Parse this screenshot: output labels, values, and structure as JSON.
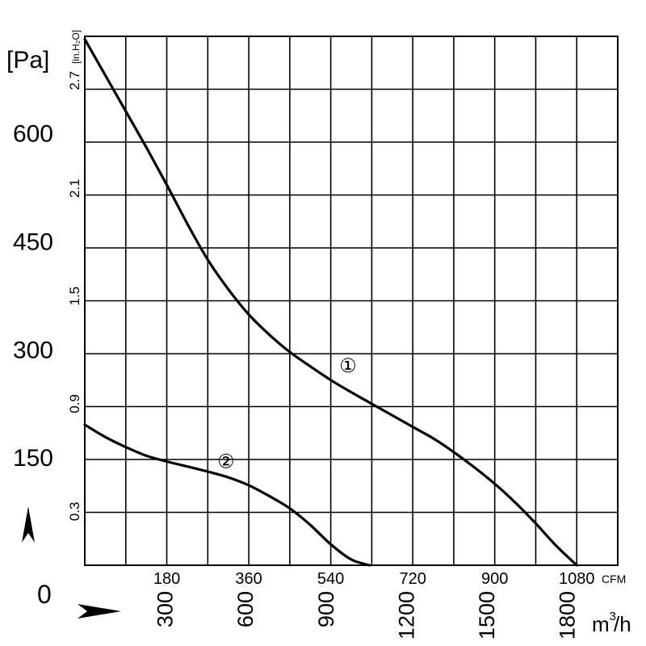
{
  "chart_data": {
    "type": "line",
    "title": "",
    "xlabel": "",
    "ylabel": "",
    "x_axis_primary": {
      "unit": "CFM",
      "ticks": [
        "180",
        "360",
        "540",
        "720",
        "900",
        "1080"
      ],
      "range": [
        0,
        1170
      ]
    },
    "x_axis_secondary": {
      "unit_base": "m",
      "unit_sup": "3",
      "unit_tail": "/h",
      "ticks": [
        "300",
        "600",
        "900",
        "1200",
        "1500",
        "1800"
      ]
    },
    "y_axis_primary": {
      "unit": "[Pa]",
      "ticks": [
        "150",
        "300",
        "450",
        "600"
      ],
      "range": [
        0,
        734
      ]
    },
    "y_axis_secondary": {
      "unit": "[in.H₂O]",
      "ticks": [
        "0.3",
        "0.9",
        "1.5",
        "2.1",
        "2.7"
      ]
    },
    "origin_label": "0",
    "grid": true,
    "series": [
      {
        "name": "①",
        "x": [
          0,
          45,
          90,
          135,
          180,
          225,
          270,
          315,
          360,
          405,
          450,
          495,
          540,
          585,
          630,
          675,
          720,
          765,
          810,
          855,
          900,
          945,
          990,
          1035,
          1080
        ],
        "y": [
          730,
          680,
          630,
          580,
          528,
          474,
          424,
          383,
          348,
          320,
          296,
          276,
          257,
          240,
          224,
          208,
          192,
          176,
          157,
          136,
          113,
          87,
          58,
          27,
          0
        ]
      },
      {
        "name": "②",
        "x": [
          0,
          45,
          90,
          135,
          180,
          225,
          270,
          315,
          360,
          405,
          450,
          495,
          540,
          585,
          625
        ],
        "y": [
          195,
          178,
          164,
          152,
          144,
          137,
          130,
          122,
          111,
          96,
          79,
          56,
          29,
          8,
          0
        ]
      }
    ]
  }
}
